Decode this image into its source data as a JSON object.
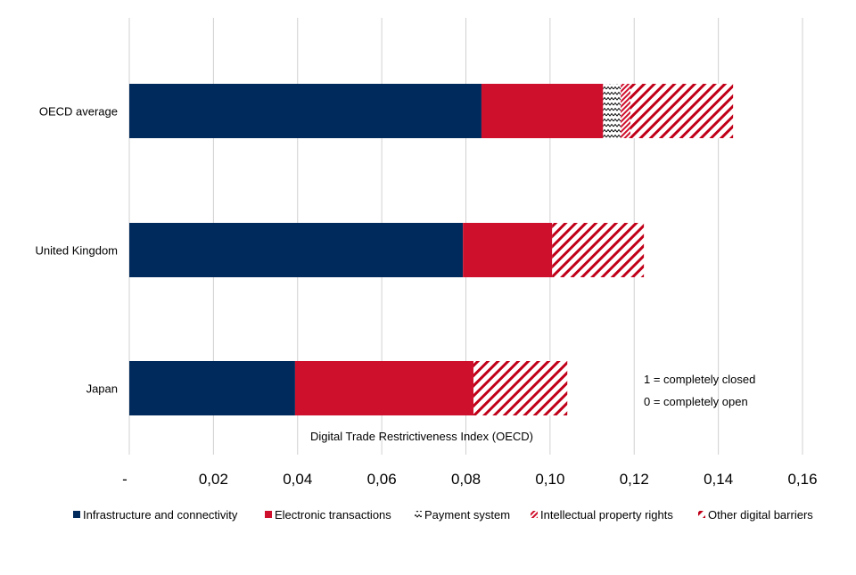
{
  "chart_data": {
    "type": "bar",
    "orientation": "horizontal",
    "stacked": true,
    "title": "",
    "xlabel": "Digital Trade Restrictiveness Index (OECD)",
    "ylabel": "",
    "xlim": [
      0,
      0.16
    ],
    "x_ticks": [
      "-",
      "0,02",
      "0,04",
      "0,06",
      "0,08",
      "0,10",
      "0,12",
      "0,14",
      "0,16"
    ],
    "grid": true,
    "legend_position": "bottom",
    "categories": [
      "OECD average",
      "United Kingdom",
      "Japan"
    ],
    "series": [
      {
        "name": "Infrastructure and connectivity",
        "color": "#002a5c",
        "pattern": "solid",
        "values": [
          0.0837,
          0.0793,
          0.0394
        ]
      },
      {
        "name": "Electronic transactions",
        "color": "#cf102d",
        "pattern": "solid",
        "values": [
          0.0289,
          0.0212,
          0.0424
        ]
      },
      {
        "name": "Payment system",
        "color": "#000000",
        "pattern": "zigzag",
        "values": [
          0.0042,
          0,
          0
        ]
      },
      {
        "name": "Intellectual property rights",
        "color": "#cf102d",
        "pattern": "dense-diagonal",
        "values": [
          0.0023,
          0,
          0
        ]
      },
      {
        "name": "Other digital barriers",
        "color": "#c00018",
        "pattern": "diagonal",
        "values": [
          0.0244,
          0.0218,
          0.0223
        ]
      }
    ],
    "annotations": [
      "1 = completely closed",
      "0 = completely open"
    ]
  }
}
